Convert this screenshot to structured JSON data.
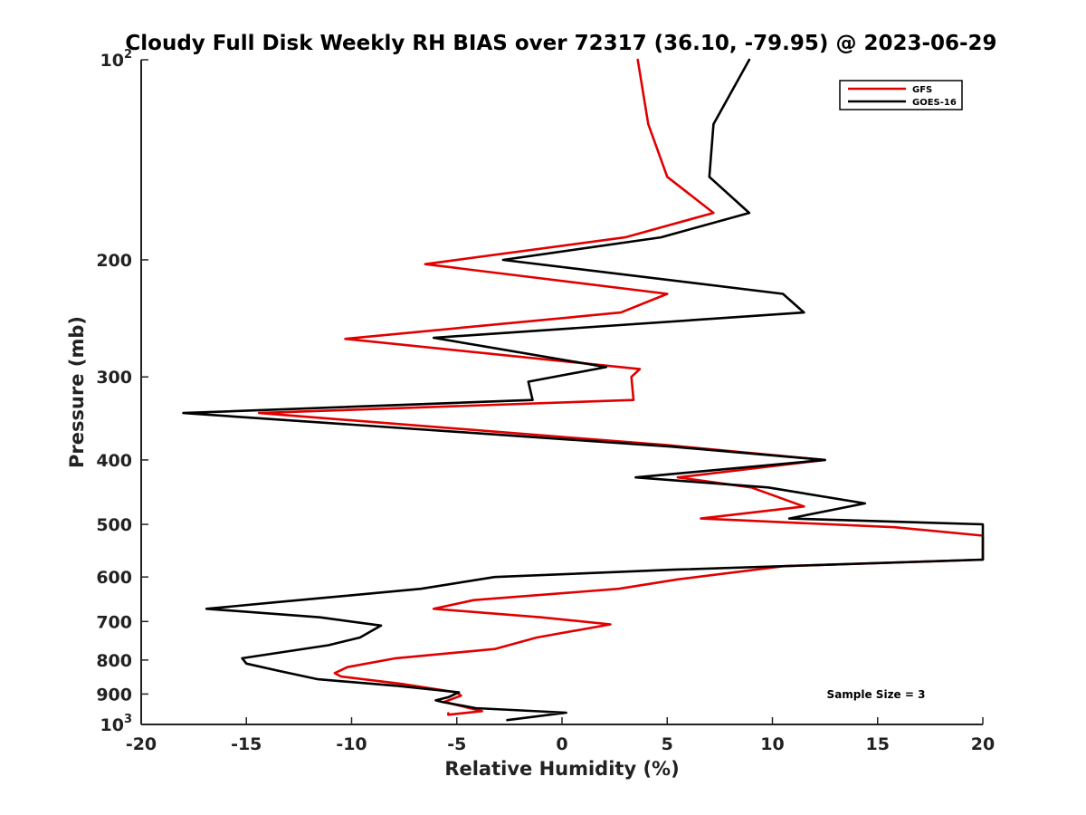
{
  "chart_data": {
    "type": "line",
    "title": "Cloudy Full Disk Weekly RH BIAS over 72317 (36.10, -79.95) @ 2023-06-29",
    "xlabel": "Relative Humidity (%)",
    "ylabel": "Pressure (mb)",
    "xlim": [
      -20,
      20
    ],
    "ylim": [
      1000,
      100
    ],
    "yscale": "log",
    "y_inverted": true,
    "grid": false,
    "legend_position": "top-right",
    "x_ticks": [
      {
        "value": -20,
        "label": "-20"
      },
      {
        "value": -15,
        "label": "-15"
      },
      {
        "value": -10,
        "label": "-10"
      },
      {
        "value": -5,
        "label": "-5"
      },
      {
        "value": 0,
        "label": "0"
      },
      {
        "value": 5,
        "label": "5"
      },
      {
        "value": 10,
        "label": "10"
      },
      {
        "value": 15,
        "label": "15"
      },
      {
        "value": 20,
        "label": "20"
      }
    ],
    "y_ticks": [
      {
        "value": 100,
        "base": "10",
        "exp": "2"
      },
      {
        "value": 200,
        "base": "200",
        "exp": ""
      },
      {
        "value": 300,
        "base": "300",
        "exp": ""
      },
      {
        "value": 400,
        "base": "400",
        "exp": ""
      },
      {
        "value": 500,
        "base": "500",
        "exp": ""
      },
      {
        "value": 600,
        "base": "600",
        "exp": ""
      },
      {
        "value": 700,
        "base": "700",
        "exp": ""
      },
      {
        "value": 800,
        "base": "800",
        "exp": ""
      },
      {
        "value": 900,
        "base": "900",
        "exp": ""
      },
      {
        "value": 1000,
        "base": "10",
        "exp": "3"
      }
    ],
    "series": [
      {
        "name": "GFS",
        "color": "#e00000",
        "points": [
          [
            3.6,
            100
          ],
          [
            4.1,
            125
          ],
          [
            5.0,
            150
          ],
          [
            7.2,
            170
          ],
          [
            3.0,
            185
          ],
          [
            -6.5,
            203
          ],
          [
            5.0,
            225
          ],
          [
            2.8,
            240
          ],
          [
            -10.3,
            263
          ],
          [
            3.7,
            292
          ],
          [
            3.3,
            300
          ],
          [
            3.4,
            325
          ],
          [
            -14.4,
            340
          ],
          [
            5.0,
            380
          ],
          [
            12.5,
            400
          ],
          [
            5.5,
            425
          ],
          [
            9.0,
            440
          ],
          [
            11.5,
            470
          ],
          [
            6.6,
            490
          ],
          [
            15.8,
            505
          ],
          [
            20.0,
            520
          ],
          [
            20.0,
            565
          ],
          [
            10.5,
            578
          ],
          [
            5.5,
            605
          ],
          [
            2.7,
            625
          ],
          [
            -4.2,
            650
          ],
          [
            -6.1,
            670
          ],
          [
            -1.0,
            690
          ],
          [
            2.3,
            707
          ],
          [
            -1.2,
            740
          ],
          [
            -3.2,
            770
          ],
          [
            -7.9,
            795
          ],
          [
            -10.2,
            820
          ],
          [
            -10.8,
            837
          ],
          [
            -10.5,
            847
          ],
          [
            -7.5,
            870
          ],
          [
            -5.0,
            895
          ],
          [
            -4.8,
            905
          ],
          [
            -5.6,
            925
          ],
          [
            -3.8,
            955
          ],
          [
            -5.4,
            967
          ],
          [
            -5.4,
            962
          ]
        ]
      },
      {
        "name": "GOES-16",
        "color": "#000000",
        "points": [
          [
            8.9,
            100
          ],
          [
            7.2,
            125
          ],
          [
            7.0,
            150
          ],
          [
            8.9,
            170
          ],
          [
            4.7,
            185
          ],
          [
            -2.8,
            200
          ],
          [
            10.5,
            225
          ],
          [
            11.5,
            240
          ],
          [
            -6.1,
            262
          ],
          [
            2.1,
            290
          ],
          [
            -1.6,
            305
          ],
          [
            -1.4,
            325
          ],
          [
            -18.0,
            340
          ],
          [
            5.2,
            382
          ],
          [
            12.5,
            400
          ],
          [
            3.5,
            425
          ],
          [
            9.8,
            440
          ],
          [
            14.4,
            465
          ],
          [
            10.8,
            490
          ],
          [
            20.0,
            500
          ],
          [
            20.0,
            565
          ],
          [
            5.3,
            585
          ],
          [
            -3.2,
            600
          ],
          [
            -6.7,
            625
          ],
          [
            -13.6,
            655
          ],
          [
            -16.9,
            670
          ],
          [
            -11.5,
            690
          ],
          [
            -8.6,
            710
          ],
          [
            -9.6,
            740
          ],
          [
            -11.1,
            760
          ],
          [
            -15.2,
            795
          ],
          [
            -15.0,
            810
          ],
          [
            -13.5,
            830
          ],
          [
            -11.6,
            855
          ],
          [
            -7.8,
            875
          ],
          [
            -4.9,
            895
          ],
          [
            -5.4,
            910
          ],
          [
            -6.0,
            920
          ],
          [
            -5.7,
            925
          ],
          [
            -4.1,
            945
          ],
          [
            0.2,
            960
          ],
          [
            -2.6,
            985
          ]
        ]
      }
    ],
    "annotation": "Sample Size = 3"
  }
}
